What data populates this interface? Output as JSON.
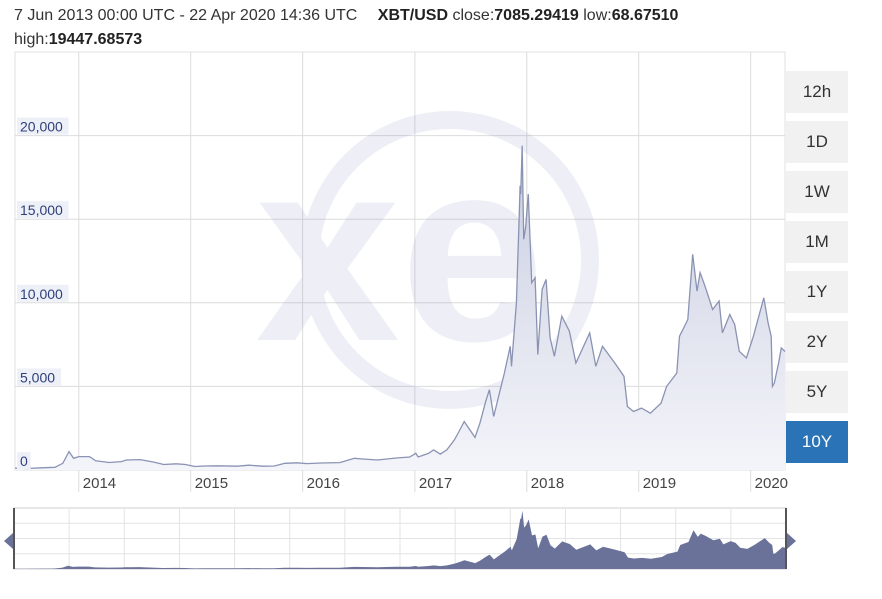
{
  "header": {
    "date_range": "7 Jun 2013 00:00 UTC - 22 Apr 2020 14:36 UTC",
    "pair": "XBT/USD",
    "close_label": "close:",
    "close_value": "7085.29419",
    "low_label": "low:",
    "low_value": "68.67510",
    "high_label": "high:",
    "high_value": "19447.68573"
  },
  "watermark": "xe",
  "range_buttons": [
    {
      "label": "12h",
      "active": false
    },
    {
      "label": "1D",
      "active": false
    },
    {
      "label": "1W",
      "active": false
    },
    {
      "label": "1M",
      "active": false
    },
    {
      "label": "1Y",
      "active": false
    },
    {
      "label": "2Y",
      "active": false
    },
    {
      "label": "5Y",
      "active": false
    },
    {
      "label": "10Y",
      "active": true
    }
  ],
  "colors": {
    "line": "#8a93b3",
    "area_top": "#c9cde0",
    "area_bottom": "#f4f5fa",
    "navigator_fill": "#6a7299",
    "active_button": "#2a73b6",
    "grid": "#dcdcdc"
  },
  "chart_data": {
    "type": "area",
    "title": "",
    "xlabel": "",
    "ylabel": "",
    "ylim": [
      0,
      25000
    ],
    "xlim": [
      "2013-06-07",
      "2020-04-22"
    ],
    "y_ticks": [
      0,
      5000,
      10000,
      15000,
      20000
    ],
    "y_tick_labels": [
      "0",
      "5,000",
      "10,000",
      "15,000",
      "20,000"
    ],
    "x_ticks": [
      "2014-01-01",
      "2015-01-01",
      "2016-01-01",
      "2017-01-01",
      "2018-01-01",
      "2019-01-01",
      "2020-01-01"
    ],
    "x_tick_labels": [
      "2014",
      "2015",
      "2016",
      "2017",
      "2018",
      "2019",
      "2020"
    ],
    "grid": true,
    "series": [
      {
        "x": [
          "2013-06-07",
          "2013-07-15",
          "2013-09-01",
          "2013-10-15",
          "2013-11-10",
          "2013-11-30",
          "2013-12-15",
          "2014-01-01",
          "2014-02-05",
          "2014-02-25",
          "2014-04-10",
          "2014-05-20",
          "2014-06-05",
          "2014-07-20",
          "2014-09-01",
          "2014-10-05",
          "2014-11-15",
          "2014-12-15",
          "2015-01-14",
          "2015-02-15",
          "2015-04-01",
          "2015-06-01",
          "2015-07-10",
          "2015-08-25",
          "2015-10-01",
          "2015-11-04",
          "2015-12-15",
          "2016-01-15",
          "2016-03-01",
          "2016-05-01",
          "2016-06-18",
          "2016-07-15",
          "2016-09-01",
          "2016-11-01",
          "2016-12-15",
          "2017-01-04",
          "2017-01-12",
          "2017-02-15",
          "2017-03-03",
          "2017-03-25",
          "2017-04-15",
          "2017-05-10",
          "2017-05-25",
          "2017-06-11",
          "2017-07-16",
          "2017-08-01",
          "2017-08-20",
          "2017-09-01",
          "2017-09-15",
          "2017-10-01",
          "2017-10-20",
          "2017-11-08",
          "2017-11-12",
          "2017-11-28",
          "2017-12-07",
          "2017-12-10",
          "2017-12-12",
          "2017-12-17",
          "2017-12-22",
          "2017-12-28",
          "2018-01-06",
          "2018-01-17",
          "2018-01-28",
          "2018-02-06",
          "2018-02-20",
          "2018-03-05",
          "2018-03-18",
          "2018-04-01",
          "2018-04-25",
          "2018-05-20",
          "2018-06-10",
          "2018-07-25",
          "2018-08-14",
          "2018-09-05",
          "2018-10-15",
          "2018-11-14",
          "2018-11-25",
          "2018-12-15",
          "2019-01-10",
          "2019-02-08",
          "2019-03-15",
          "2019-04-02",
          "2019-05-05",
          "2019-05-14",
          "2019-05-25",
          "2019-06-10",
          "2019-06-26",
          "2019-07-10",
          "2019-07-20",
          "2019-08-05",
          "2019-08-30",
          "2019-09-20",
          "2019-10-01",
          "2019-10-25",
          "2019-11-10",
          "2019-11-25",
          "2019-12-18",
          "2020-01-10",
          "2020-02-13",
          "2020-02-27",
          "2020-03-08",
          "2020-03-12",
          "2020-03-18",
          "2020-04-01",
          "2020-04-10",
          "2020-04-22"
        ],
        "y": [
          110,
          90,
          130,
          160,
          400,
          1100,
          700,
          800,
          800,
          550,
          450,
          500,
          600,
          620,
          480,
          330,
          370,
          330,
          210,
          240,
          250,
          225,
          290,
          230,
          240,
          400,
          430,
          380,
          420,
          440,
          700,
          660,
          600,
          720,
          780,
          1000,
          780,
          1000,
          1200,
          950,
          1200,
          1800,
          2300,
          2900,
          1950,
          2800,
          4100,
          4800,
          3200,
          4400,
          5800,
          7400,
          6200,
          10000,
          15000,
          17000,
          16500,
          19400,
          13800,
          14500,
          16500,
          11200,
          11500,
          6900,
          10800,
          11400,
          7900,
          6800,
          9200,
          8300,
          6400,
          8200,
          6200,
          7400,
          6400,
          5600,
          3800,
          3500,
          3700,
          3400,
          4000,
          5000,
          5800,
          8000,
          8400,
          9000,
          12900,
          10700,
          11800,
          11000,
          9600,
          10100,
          8200,
          9300,
          8700,
          7100,
          6700,
          8000,
          10300,
          8800,
          8000,
          5000,
          5200,
          6400,
          7300,
          7085
        ]
      }
    ]
  }
}
